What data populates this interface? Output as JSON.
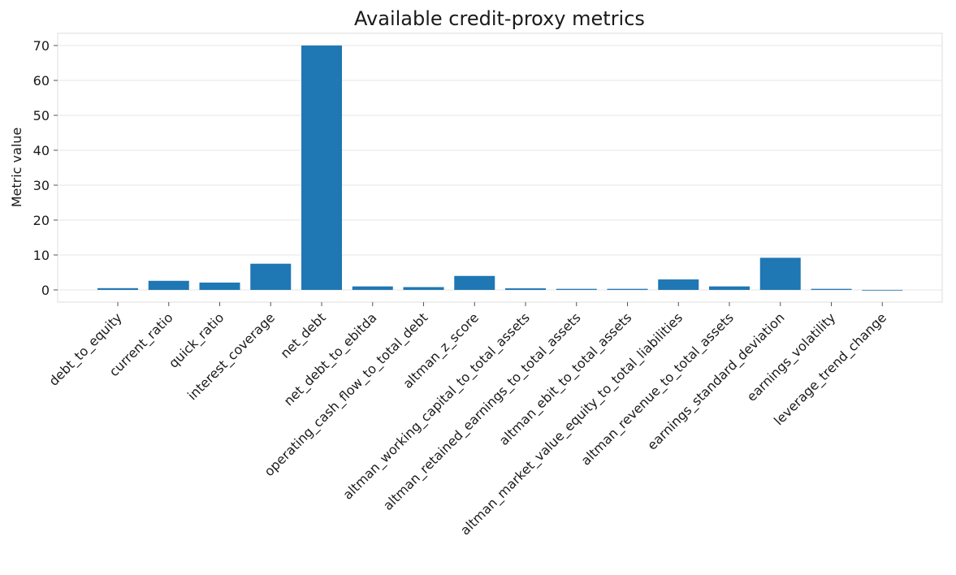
{
  "chart_data": {
    "type": "bar",
    "title": "Available credit-proxy metrics",
    "xlabel": "",
    "ylabel": "Metric value",
    "ylim": [
      -3.5,
      73.5
    ],
    "yticks": [
      0,
      10,
      20,
      30,
      40,
      50,
      60,
      70
    ],
    "grid": true,
    "bar_color": "#1f77b4",
    "categories": [
      "debt_to_equity",
      "current_ratio",
      "quick_ratio",
      "interest_coverage",
      "net_debt",
      "net_debt_to_ebitda",
      "operating_cash_flow_to_total_debt",
      "altman_z_score",
      "altman_working_capital_to_total_assets",
      "altman_retained_earnings_to_total_assets",
      "altman_ebit_to_total_assets",
      "altman_market_value_equity_to_total_liabilities",
      "altman_revenue_to_total_assets",
      "earnings_standard_deviation",
      "earnings_volatility",
      "leverage_trend_change"
    ],
    "values": [
      0.5,
      2.6,
      2.1,
      7.5,
      70.0,
      1.0,
      0.8,
      4.0,
      0.45,
      0.3,
      0.3,
      3.0,
      1.0,
      9.2,
      0.3,
      -0.1
    ]
  }
}
